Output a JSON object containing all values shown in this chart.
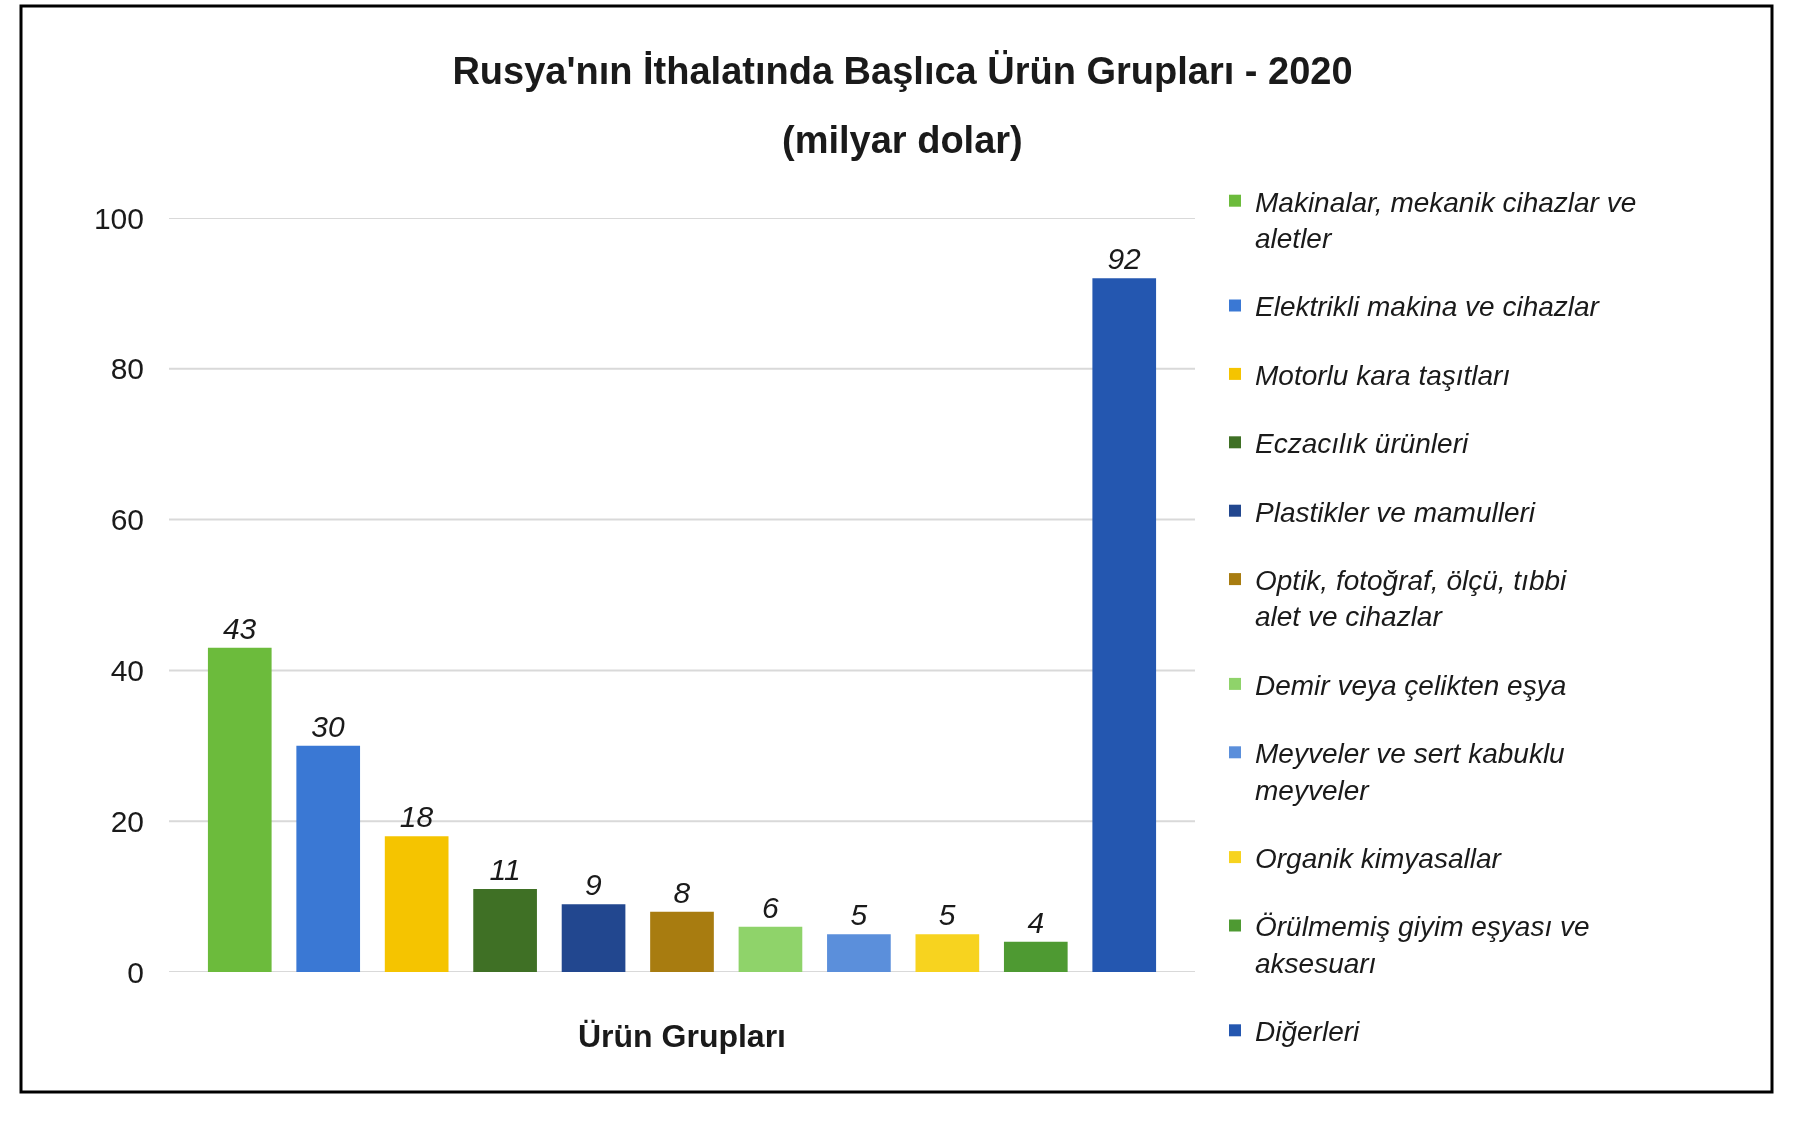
{
  "chart_data": {
    "type": "bar",
    "title": "Rusya'nın İthalatında Başlıca Ürün Grupları - 2020",
    "subtitle": "(milyar dolar)",
    "xlabel": "Ürün Grupları",
    "categories": [
      null,
      null,
      null,
      null,
      null,
      null,
      null,
      null,
      null,
      null,
      null
    ],
    "series": [
      {
        "name": "Makinalar, mekanik cihazlar ve aletler",
        "color": "#6cbb3c",
        "values": [
          43,
          null,
          null,
          null,
          null,
          null,
          null,
          null,
          null,
          null,
          null
        ]
      },
      {
        "name": "Elektrikli makina ve cihazlar",
        "color": "#3a78d4",
        "values": [
          null,
          30,
          null,
          null,
          null,
          null,
          null,
          null,
          null,
          null,
          null
        ]
      },
      {
        "name": "Motorlu kara taşıtları",
        "color": "#f5c400",
        "values": [
          null,
          null,
          18,
          null,
          null,
          null,
          null,
          null,
          null,
          null,
          null
        ]
      },
      {
        "name": "Eczacılık ürünleri",
        "color": "#3f7025",
        "values": [
          null,
          null,
          null,
          11,
          null,
          null,
          null,
          null,
          null,
          null,
          null
        ]
      },
      {
        "name": "Plastikler ve mamulleri",
        "color": "#22478f",
        "values": [
          null,
          null,
          null,
          null,
          9,
          null,
          null,
          null,
          null,
          null,
          null
        ]
      },
      {
        "name": "Optik, fotoğraf, ölçü, tıbbi alet ve cihazlar",
        "color": "#a87c10",
        "values": [
          null,
          null,
          null,
          null,
          null,
          8,
          null,
          null,
          null,
          null,
          null
        ]
      },
      {
        "name": "Demir veya çelikten eşya",
        "color": "#8fd36a",
        "values": [
          null,
          null,
          null,
          null,
          null,
          null,
          6,
          null,
          null,
          null,
          null
        ]
      },
      {
        "name": "Meyveler ve sert kabuklu meyveler",
        "color": "#5b8fdb",
        "values": [
          null,
          null,
          null,
          null,
          null,
          null,
          null,
          5,
          null,
          null,
          null
        ]
      },
      {
        "name": "Organik kimyasallar",
        "color": "#f7d31f",
        "values": [
          null,
          null,
          null,
          null,
          null,
          null,
          null,
          null,
          5,
          null,
          null
        ]
      },
      {
        "name": "Örülmemiş giyim eşyası ve aksesuarı",
        "color": "#4e9a32",
        "values": [
          null,
          null,
          null,
          null,
          null,
          null,
          null,
          null,
          null,
          4,
          null
        ]
      },
      {
        "name": "Diğerleri",
        "color": "#2457b0",
        "values": [
          null,
          null,
          null,
          null,
          null,
          null,
          null,
          null,
          null,
          null,
          92
        ]
      }
    ],
    "ylim": [
      0,
      100
    ],
    "yticks": [
      0,
      20,
      40,
      60,
      80,
      100
    ],
    "grid": "y",
    "legend": "right",
    "data_labels": true,
    "tick_labels": "y"
  }
}
